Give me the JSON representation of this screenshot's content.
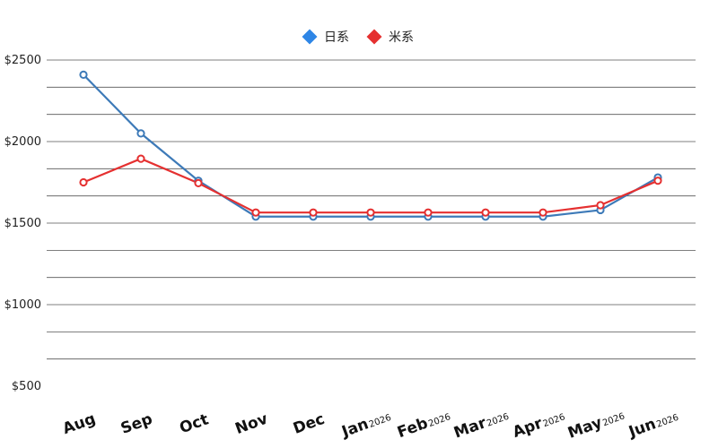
{
  "chart_data": {
    "type": "line",
    "categories": [
      {
        "label": "Aug",
        "year": ""
      },
      {
        "label": "Sep",
        "year": ""
      },
      {
        "label": "Oct",
        "year": ""
      },
      {
        "label": "Nov",
        "year": ""
      },
      {
        "label": "Dec",
        "year": ""
      },
      {
        "label": "Jan",
        "year": "2026"
      },
      {
        "label": "Feb",
        "year": "2026"
      },
      {
        "label": "Mar",
        "year": "2026"
      },
      {
        "label": "Apr",
        "year": "2026"
      },
      {
        "label": "May",
        "year": "2026"
      },
      {
        "label": "Jun",
        "year": "2026"
      }
    ],
    "series": [
      {
        "name": "日系",
        "color": "#3d7ab8",
        "legend_color": "#2e86e6",
        "values": [
          2410,
          2050,
          1760,
          1540,
          1540,
          1540,
          1540,
          1540,
          1540,
          1580,
          1780
        ]
      },
      {
        "name": "米系",
        "color": "#e53030",
        "legend_color": "#e53030",
        "values": [
          1750,
          1895,
          1745,
          1565,
          1565,
          1565,
          1565,
          1565,
          1565,
          1610,
          1760
        ]
      }
    ],
    "ylim": [
      500,
      2500
    ],
    "yticks": [
      {
        "value": 2500,
        "label": "$2500"
      },
      {
        "value": 2000,
        "label": "$2000"
      },
      {
        "value": 1500,
        "label": "$1500"
      },
      {
        "value": 1000,
        "label": "$1000"
      },
      {
        "value": 500,
        "label": "$500"
      }
    ],
    "grid_step": 166.67,
    "grid": true,
    "legend_position": "top-center"
  }
}
